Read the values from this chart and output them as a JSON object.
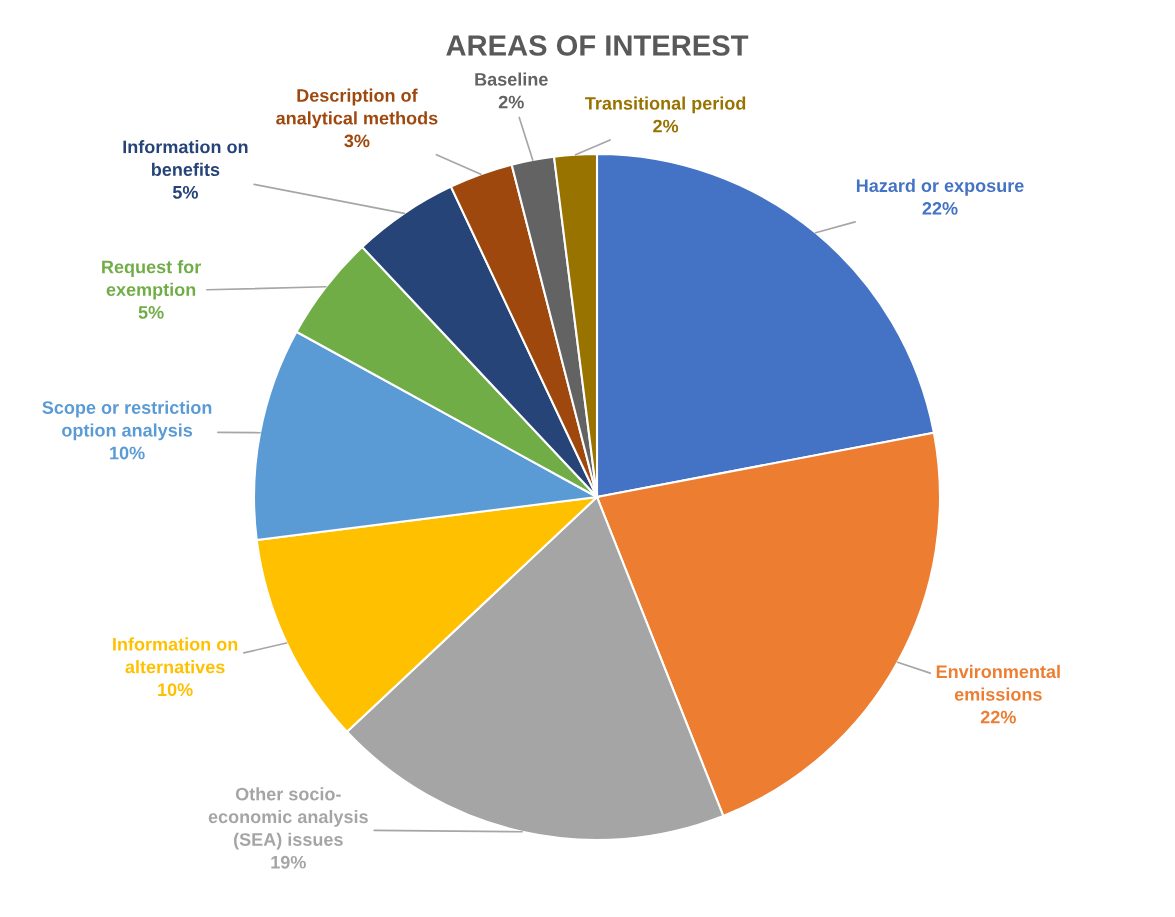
{
  "chart_data": {
    "type": "pie",
    "title": "AREAS OF INTEREST",
    "categories": [
      "Hazard or exposure",
      "Environmental\nemissions",
      "Other socio-\neconomic analysis\n(SEA) issues",
      "Information on\nalternatives",
      "Scope or restriction\noption analysis",
      "Request for\nexemption",
      "Information on\nbenefits",
      "Description of\nanalytical methods",
      "Baseline",
      "Transitional period"
    ],
    "values": [
      22,
      22,
      19,
      10,
      10,
      5,
      5,
      3,
      2,
      2
    ],
    "value_labels": [
      "22%",
      "22%",
      "19%",
      "10%",
      "10%",
      "5%",
      "5%",
      "3%",
      "2%",
      "2%"
    ],
    "colors": [
      "#4472c4",
      "#ed7d31",
      "#a5a5a5",
      "#ffc000",
      "#5b9bd5",
      "#70ad47",
      "#264478",
      "#9e480e",
      "#636363",
      "#997300"
    ],
    "legend": false
  }
}
